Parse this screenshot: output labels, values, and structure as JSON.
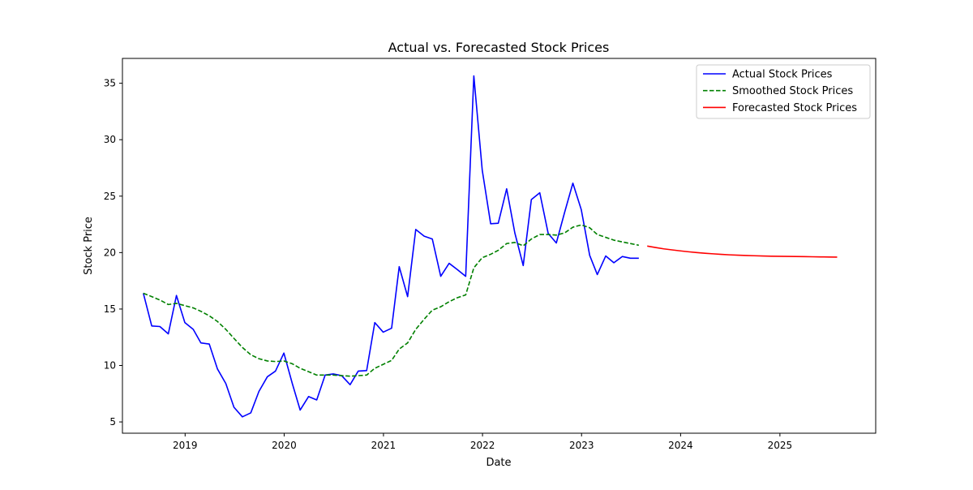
{
  "chart_data": {
    "type": "line",
    "title": "Actual vs. Forecasted Stock Prices",
    "xlabel": "Date",
    "ylabel": "Stock Price",
    "xlim": [
      "2018-05-15",
      "2025-12-20"
    ],
    "ylim": [
      4.0,
      37.2
    ],
    "x_ticks": [
      {
        "date": "2019-01-01",
        "label": "2019"
      },
      {
        "date": "2020-01-01",
        "label": "2020"
      },
      {
        "date": "2021-01-01",
        "label": "2021"
      },
      {
        "date": "2022-01-01",
        "label": "2022"
      },
      {
        "date": "2023-01-01",
        "label": "2023"
      },
      {
        "date": "2024-01-01",
        "label": "2024"
      },
      {
        "date": "2025-01-01",
        "label": "2025"
      }
    ],
    "y_ticks": [
      5,
      10,
      15,
      20,
      25,
      30,
      35
    ],
    "grid": false,
    "legend_position": "upper right",
    "series": [
      {
        "name": "Actual Stock Prices",
        "color": "#0000ff",
        "style": "solid",
        "x": [
          "2018-07-31",
          "2018-08-31",
          "2018-09-30",
          "2018-10-31",
          "2018-11-30",
          "2018-12-31",
          "2019-01-31",
          "2019-02-28",
          "2019-03-31",
          "2019-04-30",
          "2019-05-31",
          "2019-06-30",
          "2019-07-31",
          "2019-08-31",
          "2019-09-30",
          "2019-10-31",
          "2019-11-30",
          "2019-12-31",
          "2020-01-31",
          "2020-02-29",
          "2020-03-31",
          "2020-04-30",
          "2020-05-31",
          "2020-06-30",
          "2020-07-31",
          "2020-08-31",
          "2020-09-30",
          "2020-10-31",
          "2020-11-30",
          "2020-12-31",
          "2021-01-31",
          "2021-02-28",
          "2021-03-31",
          "2021-04-30",
          "2021-05-31",
          "2021-06-30",
          "2021-07-31",
          "2021-08-31",
          "2021-09-30",
          "2021-10-31",
          "2021-11-30",
          "2021-12-31",
          "2022-01-31",
          "2022-02-28",
          "2022-03-31",
          "2022-04-30",
          "2022-05-31",
          "2022-06-30",
          "2022-07-31",
          "2022-08-31",
          "2022-09-30",
          "2022-10-31",
          "2022-11-30",
          "2022-12-31",
          "2023-01-31",
          "2023-02-28",
          "2023-03-31",
          "2023-04-30",
          "2023-05-31",
          "2023-06-30",
          "2023-07-31"
        ],
        "values": [
          16.4,
          13.5,
          13.45,
          12.8,
          16.2,
          13.8,
          13.2,
          12.0,
          11.9,
          9.7,
          8.4,
          6.3,
          5.45,
          5.8,
          7.7,
          9.0,
          9.5,
          11.1,
          8.4,
          6.05,
          7.25,
          6.95,
          9.15,
          9.25,
          9.1,
          8.3,
          9.5,
          9.55,
          13.8,
          12.95,
          13.3,
          18.75,
          16.1,
          22.05,
          21.45,
          21.2,
          17.9,
          19.05,
          18.5,
          17.9,
          35.65,
          27.3,
          22.55,
          22.6,
          25.65,
          21.75,
          18.85,
          24.7,
          25.3,
          21.7,
          20.85,
          23.6,
          26.15,
          23.8,
          19.75,
          18.05,
          19.7,
          19.1,
          19.65,
          19.5,
          19.5
        ]
      },
      {
        "name": "Smoothed Stock Prices",
        "color": "#008000",
        "style": "dashed",
        "x": [
          "2018-07-31",
          "2018-08-31",
          "2018-09-30",
          "2018-10-31",
          "2018-11-30",
          "2018-12-31",
          "2019-01-31",
          "2019-02-28",
          "2019-03-31",
          "2019-04-30",
          "2019-05-31",
          "2019-06-30",
          "2019-07-31",
          "2019-08-31",
          "2019-09-30",
          "2019-10-31",
          "2019-11-30",
          "2019-12-31",
          "2020-01-31",
          "2020-02-29",
          "2020-03-31",
          "2020-04-30",
          "2020-05-31",
          "2020-06-30",
          "2020-07-31",
          "2020-08-31",
          "2020-09-30",
          "2020-10-31",
          "2020-11-30",
          "2020-12-31",
          "2021-01-31",
          "2021-02-28",
          "2021-03-31",
          "2021-04-30",
          "2021-05-31",
          "2021-06-30",
          "2021-07-31",
          "2021-08-31",
          "2021-09-30",
          "2021-10-31",
          "2021-11-30",
          "2021-12-31",
          "2022-01-31",
          "2022-02-28",
          "2022-03-31",
          "2022-04-30",
          "2022-05-31",
          "2022-06-30",
          "2022-07-31",
          "2022-08-31",
          "2022-09-30",
          "2022-10-31",
          "2022-11-30",
          "2022-12-31",
          "2023-01-31",
          "2023-02-28",
          "2023-03-31",
          "2023-04-30",
          "2023-05-31",
          "2023-06-30",
          "2023-07-31"
        ],
        "values": [
          16.4,
          16.1,
          15.8,
          15.4,
          15.5,
          15.3,
          15.1,
          14.8,
          14.4,
          13.9,
          13.2,
          12.4,
          11.6,
          10.95,
          10.6,
          10.4,
          10.35,
          10.4,
          10.15,
          9.75,
          9.45,
          9.15,
          9.15,
          9.15,
          9.1,
          9.05,
          9.1,
          9.15,
          9.75,
          10.1,
          10.45,
          11.45,
          12.0,
          13.2,
          14.1,
          14.9,
          15.2,
          15.65,
          16.0,
          16.25,
          18.65,
          19.55,
          19.85,
          20.2,
          20.8,
          20.9,
          20.6,
          21.2,
          21.6,
          21.6,
          21.55,
          21.75,
          22.25,
          22.45,
          22.2,
          21.6,
          21.35,
          21.1,
          20.95,
          20.8,
          20.65
        ]
      },
      {
        "name": "Forecasted Stock Prices",
        "color": "#ff0000",
        "style": "solid",
        "x": [
          "2023-08-31",
          "2023-09-30",
          "2023-10-31",
          "2023-11-30",
          "2023-12-31",
          "2024-01-31",
          "2024-02-29",
          "2024-03-31",
          "2024-04-30",
          "2024-05-31",
          "2024-06-30",
          "2024-07-31",
          "2024-08-31",
          "2024-09-30",
          "2024-10-31",
          "2024-11-30",
          "2024-12-31",
          "2025-01-31",
          "2025-02-28",
          "2025-03-31",
          "2025-04-30",
          "2025-05-31",
          "2025-06-30",
          "2025-07-31"
        ],
        "values": [
          20.58,
          20.45,
          20.33,
          20.24,
          20.15,
          20.07,
          20.0,
          19.94,
          19.89,
          19.84,
          19.8,
          19.77,
          19.74,
          19.72,
          19.7,
          19.68,
          19.67,
          19.66,
          19.65,
          19.64,
          19.63,
          19.62,
          19.61,
          19.6
        ]
      }
    ]
  }
}
